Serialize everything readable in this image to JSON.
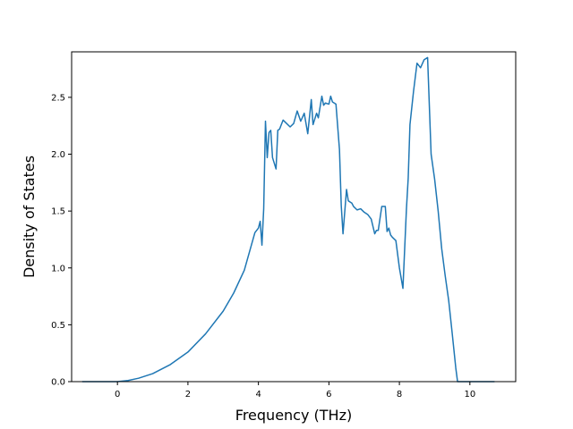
{
  "chart_data": {
    "type": "line",
    "title": "",
    "xlabel": "Frequency (THz)",
    "ylabel": "Density of States",
    "xlim": [
      -1.3,
      11.3
    ],
    "ylim": [
      0,
      2.9
    ],
    "xticks": [
      0,
      2,
      4,
      6,
      8,
      10
    ],
    "xtick_labels": [
      "0",
      "2",
      "4",
      "6",
      "8",
      "10"
    ],
    "yticks": [
      0.0,
      0.5,
      1.0,
      1.5,
      2.0,
      2.5
    ],
    "ytick_labels": [
      "0.0",
      "0.5",
      "1.0",
      "1.5",
      "2.0",
      "2.5"
    ],
    "grid": false,
    "series": [
      {
        "color": "#1f77b4",
        "x": [
          -1.0,
          -0.5,
          0.0,
          0.3,
          0.6,
          1.0,
          1.5,
          2.0,
          2.5,
          3.0,
          3.3,
          3.6,
          3.8,
          3.9,
          4.0,
          4.05,
          4.1,
          4.15,
          4.2,
          4.25,
          4.3,
          4.35,
          4.4,
          4.5,
          4.55,
          4.6,
          4.7,
          4.8,
          4.9,
          5.0,
          5.1,
          5.2,
          5.3,
          5.4,
          5.5,
          5.55,
          5.6,
          5.65,
          5.7,
          5.8,
          5.85,
          5.9,
          6.0,
          6.05,
          6.1,
          6.15,
          6.2,
          6.3,
          6.35,
          6.4,
          6.5,
          6.55,
          6.6,
          6.65,
          6.7,
          6.8,
          6.9,
          7.0,
          7.1,
          7.2,
          7.3,
          7.35,
          7.4,
          7.5,
          7.6,
          7.65,
          7.7,
          7.75,
          7.8,
          7.9,
          8.0,
          8.1,
          8.2,
          8.25,
          8.3,
          8.4,
          8.5,
          8.6,
          8.7,
          8.75,
          8.8,
          8.9,
          9.0,
          9.1,
          9.2,
          9.3,
          9.4,
          9.5,
          9.6,
          9.65,
          9.7,
          9.75,
          10.0,
          10.3,
          10.7
        ],
        "y": [
          0.0,
          0.0,
          0.0,
          0.01,
          0.03,
          0.07,
          0.15,
          0.26,
          0.42,
          0.62,
          0.78,
          0.98,
          1.2,
          1.31,
          1.35,
          1.41,
          1.2,
          1.52,
          2.29,
          1.97,
          2.19,
          2.21,
          1.97,
          1.87,
          2.21,
          2.22,
          2.3,
          2.27,
          2.24,
          2.27,
          2.38,
          2.29,
          2.36,
          2.18,
          2.48,
          2.26,
          2.31,
          2.36,
          2.32,
          2.51,
          2.43,
          2.45,
          2.44,
          2.51,
          2.46,
          2.45,
          2.44,
          2.04,
          1.55,
          1.3,
          1.69,
          1.59,
          1.58,
          1.57,
          1.54,
          1.51,
          1.52,
          1.49,
          1.47,
          1.43,
          1.3,
          1.33,
          1.33,
          1.54,
          1.54,
          1.32,
          1.35,
          1.29,
          1.27,
          1.24,
          1.0,
          0.82,
          1.52,
          1.79,
          2.26,
          2.55,
          2.8,
          2.76,
          2.83,
          2.84,
          2.85,
          2.0,
          1.78,
          1.5,
          1.17,
          0.93,
          0.71,
          0.42,
          0.12,
          0.0,
          0.0,
          0.0,
          0.0,
          0.0,
          0.0
        ]
      }
    ]
  }
}
